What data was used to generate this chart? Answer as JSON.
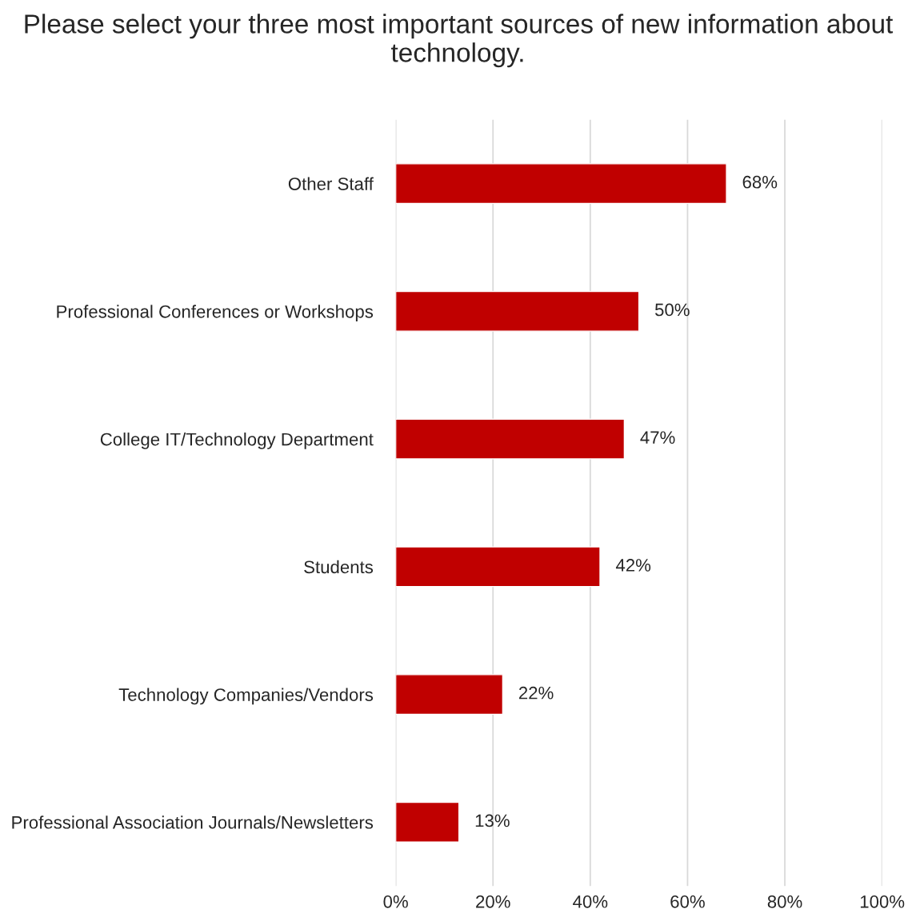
{
  "chart_data": {
    "type": "bar",
    "orientation": "horizontal",
    "title": "Please select your three most important sources of new information about technology.",
    "categories": [
      "Other Staff",
      "Professional Conferences or Workshops",
      "College IT/Technology Department",
      "Students",
      "Technology Companies/Vendors",
      "Professional Association Journals/Newsletters"
    ],
    "values": [
      68,
      50,
      47,
      42,
      22,
      13
    ],
    "value_labels": [
      "68%",
      "50%",
      "47%",
      "42%",
      "22%",
      "13%"
    ],
    "color": "#c00000",
    "xlim": [
      0,
      100
    ],
    "xticks": [
      {
        "value": 0,
        "label": "0%"
      },
      {
        "value": 20,
        "label": "20%"
      },
      {
        "value": 40,
        "label": "40%"
      },
      {
        "value": 60,
        "label": "60%"
      },
      {
        "value": 80,
        "label": "80%"
      },
      {
        "value": 100,
        "label": "100%"
      }
    ],
    "grid": "x",
    "legend": false
  }
}
